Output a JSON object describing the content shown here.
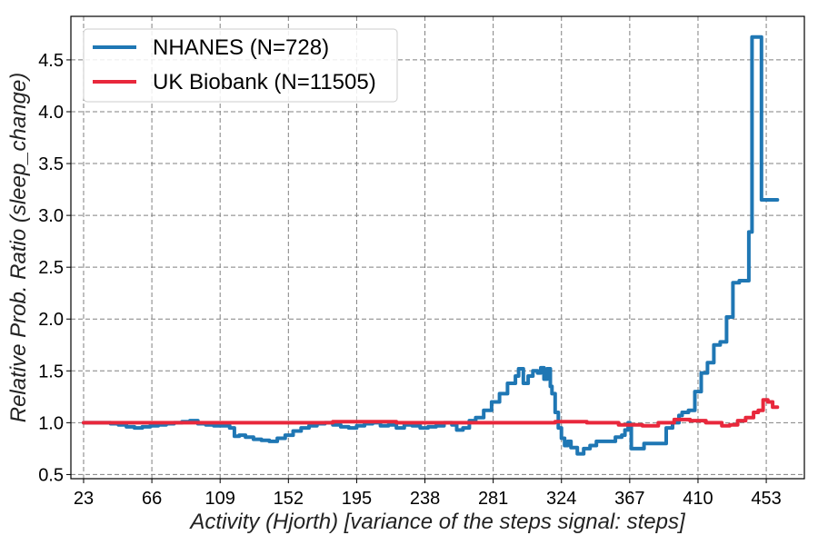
{
  "chart_data": {
    "type": "line",
    "xlabel": "Activity (Hjorth) [variance of the steps signal: steps]",
    "ylabel": "Relative Prob. Ratio (sleep_change)",
    "xlim": [
      15,
      477
    ],
    "ylim": [
      0.46,
      4.92
    ],
    "xticks": [
      23,
      66,
      109,
      152,
      195,
      238,
      281,
      324,
      367,
      410,
      453
    ],
    "xtick_labels": [
      "23",
      "66",
      "109",
      "152",
      "195",
      "238",
      "281",
      "324",
      "367",
      "410",
      "453"
    ],
    "yticks": [
      0.5,
      1.0,
      1.5,
      2.0,
      2.5,
      3.0,
      3.5,
      4.0,
      4.5
    ],
    "ytick_labels": [
      "0.5",
      "1.0",
      "1.5",
      "2.0",
      "2.5",
      "3.0",
      "3.5",
      "4.0",
      "4.5"
    ],
    "grid": true,
    "legend_position": "top-left",
    "series": [
      {
        "name": "NHANES (N=728)",
        "color": "#1f77b4",
        "x": [
          23,
          30,
          40,
          45,
          50,
          55,
          60,
          65,
          70,
          75,
          80,
          85,
          90,
          95,
          100,
          105,
          110,
          115,
          118,
          121,
          125,
          130,
          135,
          140,
          145,
          150,
          155,
          160,
          165,
          170,
          175,
          180,
          185,
          190,
          195,
          200,
          205,
          210,
          215,
          220,
          225,
          230,
          235,
          240,
          245,
          250,
          255,
          258,
          262,
          266,
          270,
          275,
          280,
          285,
          290,
          295,
          297,
          300,
          303,
          306,
          309,
          311,
          313,
          315,
          317,
          318,
          320,
          322,
          324,
          326,
          328,
          330,
          334,
          338,
          342,
          346,
          350,
          354,
          358,
          362,
          364,
          366,
          367,
          368,
          372,
          376,
          380,
          384,
          386,
          390,
          394,
          398,
          400,
          404,
          408,
          412,
          416,
          420,
          424,
          428,
          432,
          436,
          438,
          440,
          442,
          444,
          446,
          450,
          455,
          460
        ],
        "values": [
          1.0,
          1.0,
          0.99,
          0.98,
          0.96,
          0.95,
          0.96,
          0.97,
          0.98,
          0.99,
          1.0,
          1.01,
          1.02,
          0.99,
          0.98,
          0.97,
          0.97,
          0.95,
          0.87,
          0.88,
          0.86,
          0.84,
          0.83,
          0.82,
          0.85,
          0.88,
          0.92,
          0.95,
          0.97,
          0.99,
          1.0,
          0.98,
          0.96,
          0.95,
          0.97,
          0.99,
          1.0,
          0.97,
          0.98,
          0.95,
          0.98,
          0.97,
          0.95,
          0.96,
          0.97,
          1.0,
          0.98,
          0.93,
          0.95,
          1.02,
          1.05,
          1.12,
          1.2,
          1.28,
          1.38,
          1.45,
          1.52,
          1.38,
          1.45,
          1.5,
          1.48,
          1.53,
          1.42,
          1.52,
          1.35,
          1.28,
          1.1,
          0.95,
          0.85,
          0.78,
          0.82,
          0.76,
          0.7,
          0.75,
          0.78,
          0.82,
          0.82,
          0.82,
          0.86,
          0.88,
          0.93,
          1.0,
          0.98,
          0.75,
          0.75,
          0.8,
          0.8,
          0.8,
          0.8,
          0.95,
          1.0,
          1.07,
          1.1,
          1.12,
          1.3,
          1.48,
          1.58,
          1.75,
          1.78,
          2.02,
          2.35,
          2.37,
          2.37,
          2.37,
          2.84,
          4.72,
          4.72,
          3.15,
          3.15,
          3.15
        ]
      },
      {
        "name": "UK Biobank (N=11505)",
        "color": "#e8283c",
        "x": [
          23,
          40,
          60,
          80,
          100,
          120,
          140,
          160,
          180,
          200,
          220,
          240,
          260,
          280,
          300,
          320,
          340,
          360,
          375,
          385,
          395,
          405,
          415,
          425,
          430,
          435,
          440,
          445,
          448,
          451,
          454,
          457,
          460
        ],
        "values": [
          1.0,
          1.0,
          1.0,
          1.0,
          1.0,
          1.0,
          1.0,
          1.0,
          1.01,
          1.01,
          1.0,
          1.0,
          1.0,
          1.0,
          1.0,
          1.01,
          1.0,
          0.98,
          0.97,
          1.0,
          1.03,
          1.02,
          1.0,
          0.97,
          0.98,
          1.02,
          1.05,
          1.1,
          1.12,
          1.22,
          1.2,
          1.15,
          1.15
        ]
      }
    ]
  }
}
